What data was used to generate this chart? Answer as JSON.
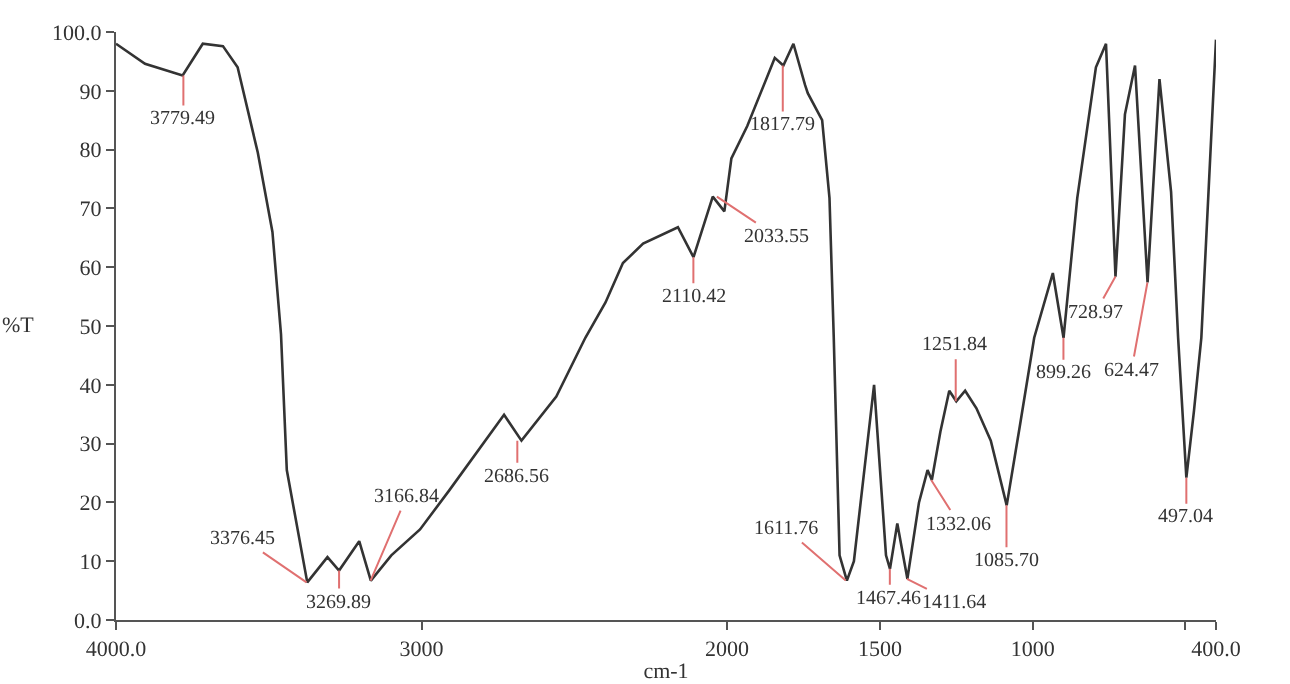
{
  "chart_data": {
    "type": "line",
    "xlabel": "cm-1",
    "ylabel": "%T",
    "x": [
      4000,
      3905,
      3782,
      3716,
      3650,
      3602,
      3536,
      3488,
      3460,
      3441,
      3374,
      3308,
      3270,
      3204,
      3166,
      3099,
      3005,
      2910,
      2730,
      2673,
      2559,
      2464,
      2398,
      2341,
      2275,
      2161,
      2110,
      2047,
      2009,
      1986,
      1934,
      1854,
      1844,
      1816,
      1783,
      1745,
      1736,
      1689,
      1665,
      1651,
      1632,
      1608,
      1585,
      1519,
      1480,
      1467,
      1443,
      1410,
      1372,
      1344,
      1330,
      1302,
      1273,
      1250,
      1221,
      1184,
      1137,
      1085,
      1042,
      995,
      934,
      899,
      854,
      826,
      793,
      760,
      729,
      698,
      665,
      624,
      585,
      547,
      524,
      497,
      472,
      448,
      400
    ],
    "series": [
      {
        "color": "#333333",
        "values": [
          98,
          94.6,
          92.6,
          98,
          97.6,
          94,
          79.5,
          66,
          48.6,
          25.5,
          6.4,
          10.7,
          8.4,
          13.4,
          6.7,
          11,
          15.4,
          22,
          34.9,
          30.5,
          38,
          48,
          54,
          60.7,
          64,
          66.8,
          61.7,
          72,
          69.5,
          78.5,
          84,
          94.3,
          95.6,
          94.3,
          98,
          91,
          89.6,
          85,
          71.8,
          48,
          11,
          6.7,
          10,
          40,
          11,
          8.7,
          16.4,
          7,
          20,
          25.5,
          23.8,
          32,
          39,
          37.2,
          39,
          36,
          30.5,
          19.5,
          33,
          48,
          59,
          48,
          71.8,
          82,
          94,
          98,
          58.4,
          86,
          94.3,
          57.4,
          92,
          72.8,
          48,
          24.2,
          35.6,
          48,
          98.7
        ]
      }
    ],
    "xlim": [
      4000,
      400
    ],
    "xticks": [
      {
        "value": 4000,
        "label": "4000.0"
      },
      3000,
      2000,
      1500,
      1000,
      {
        "value": 500,
        "label": null
      },
      {
        "value": 400,
        "label": "400.0"
      }
    ],
    "ylim": [
      0,
      100
    ],
    "yticks": [
      {
        "value": 0,
        "label": "0.0"
      },
      10,
      20,
      30,
      40,
      50,
      60,
      70,
      80,
      90,
      {
        "value": 100,
        "label": "100.0"
      }
    ],
    "grid": false,
    "marker": "none",
    "line_style": "solid",
    "annotations": [
      {
        "text": "3779.49",
        "x": 3779.49,
        "y": 92.6
      },
      {
        "text": "3376.45",
        "x": 3376.45,
        "y": 6.4
      },
      {
        "text": "3269.89",
        "x": 3269.89,
        "y": 8.4
      },
      {
        "text": "3166.84",
        "x": 3166.84,
        "y": 6.7
      },
      {
        "text": "2686.56",
        "x": 2686.56,
        "y": 30.5
      },
      {
        "text": "2110.42",
        "x": 2110.42,
        "y": 61.7
      },
      {
        "text": "2033.55",
        "x": 2033.55,
        "y": 72
      },
      {
        "text": "1817.79",
        "x": 1817.79,
        "y": 94.3
      },
      {
        "text": "1611.76",
        "x": 1611.76,
        "y": 6.7
      },
      {
        "text": "1467.46",
        "x": 1467.46,
        "y": 8.7
      },
      {
        "text": "1411.64",
        "x": 1411.64,
        "y": 7
      },
      {
        "text": "1332.06",
        "x": 1332.06,
        "y": 23.8
      },
      {
        "text": "1251.84",
        "x": 1251.84,
        "y": 37.2
      },
      {
        "text": "1085.70",
        "x": 1085.7,
        "y": 19.5
      },
      {
        "text": "899.26",
        "x": 899.26,
        "y": 48
      },
      {
        "text": "728.97",
        "x": 728.97,
        "y": 58.4
      },
      {
        "text": "624.47",
        "x": 624.47,
        "y": 57.4
      },
      {
        "text": "497.04",
        "x": 497.04,
        "y": 24.2
      }
    ]
  }
}
